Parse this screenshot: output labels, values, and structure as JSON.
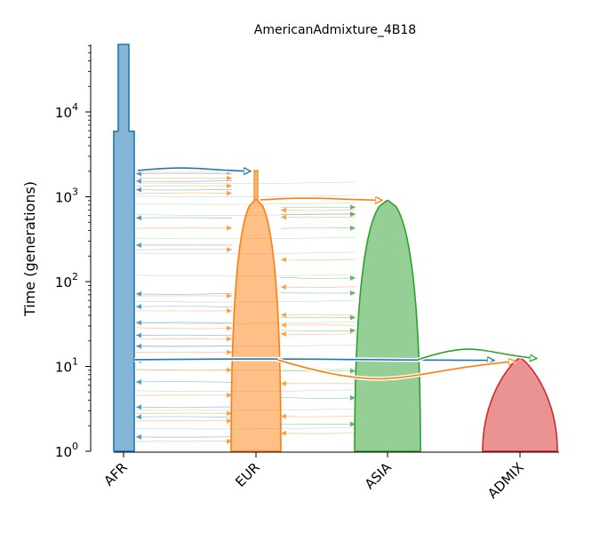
{
  "chart_data": {
    "type": "demes-demography",
    "title": "AmericanAdmixture_4B18",
    "ylabel": "Time (generations)",
    "yscale": "log",
    "ylim": [
      1,
      50000
    ],
    "y_ticks": [
      {
        "value": 1,
        "base": "10",
        "exp": "0"
      },
      {
        "value": 10,
        "base": "10",
        "exp": "1"
      },
      {
        "value": 100,
        "base": "10",
        "exp": "2"
      },
      {
        "value": 1000,
        "base": "10",
        "exp": "3"
      },
      {
        "value": 10000,
        "base": "10",
        "exp": "4"
      }
    ],
    "categories": [
      "AFR",
      "EUR",
      "ASIA",
      "ADMIX"
    ],
    "demes": [
      {
        "name": "AFR",
        "color": "#1f77b4",
        "start_time": "inf",
        "shape": "constant with step at 5920 generations"
      },
      {
        "name": "EUR",
        "color": "#ff7f0e",
        "start_time": 2040,
        "shape": "exponential growth",
        "ancestor": "AFR"
      },
      {
        "name": "ASIA",
        "color": "#2ca02c",
        "start_time": 920,
        "shape": "exponential growth",
        "ancestor": "EUR"
      },
      {
        "name": "ADMIX",
        "color": "#d62728",
        "start_time": 12,
        "shape": "exponential growth",
        "ancestors": [
          "AFR",
          "EUR",
          "ASIA"
        ]
      }
    ],
    "pulses_and_origins": [
      {
        "source": "AFR",
        "dest": "EUR",
        "time": 2040
      },
      {
        "source": "EUR",
        "dest": "ASIA",
        "time": 920
      },
      {
        "source": "AFR",
        "dest": "ADMIX",
        "time": 12
      },
      {
        "source": "EUR",
        "dest": "ADMIX",
        "time": 12
      },
      {
        "source": "ASIA",
        "dest": "ADMIX",
        "time": 12
      }
    ],
    "migration": "symmetric migration among AFR, EUR and ASIA"
  }
}
